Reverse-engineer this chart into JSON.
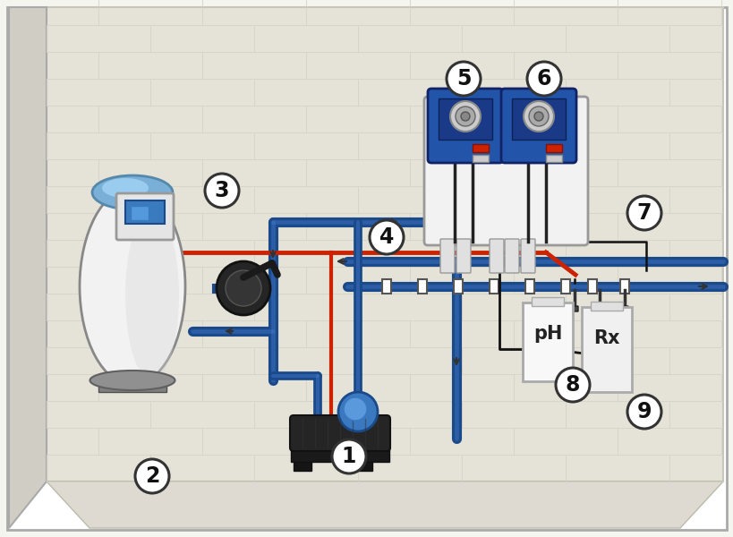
{
  "bg_color": "#f5f5f0",
  "wall_color": "#e5e2d8",
  "wall_edge": "#c8c5ba",
  "floor_color": "#dedad2",
  "pipe_blue": "#1a4a8a",
  "pipe_blue_light": "#4477cc",
  "pipe_red": "#cc2200",
  "wire_black": "#111111",
  "pump_dark": "#2a2a2a",
  "pump_blue": "#2255aa",
  "filter_body": "#f2f2f2",
  "filter_blue": "#7ab0d8",
  "box_bg": "#e8e8e8",
  "container_bg": "#f8f8f8",
  "label_bg": "#ffffff",
  "label_ring": "#333333",
  "mortar": "#d5d2c8"
}
